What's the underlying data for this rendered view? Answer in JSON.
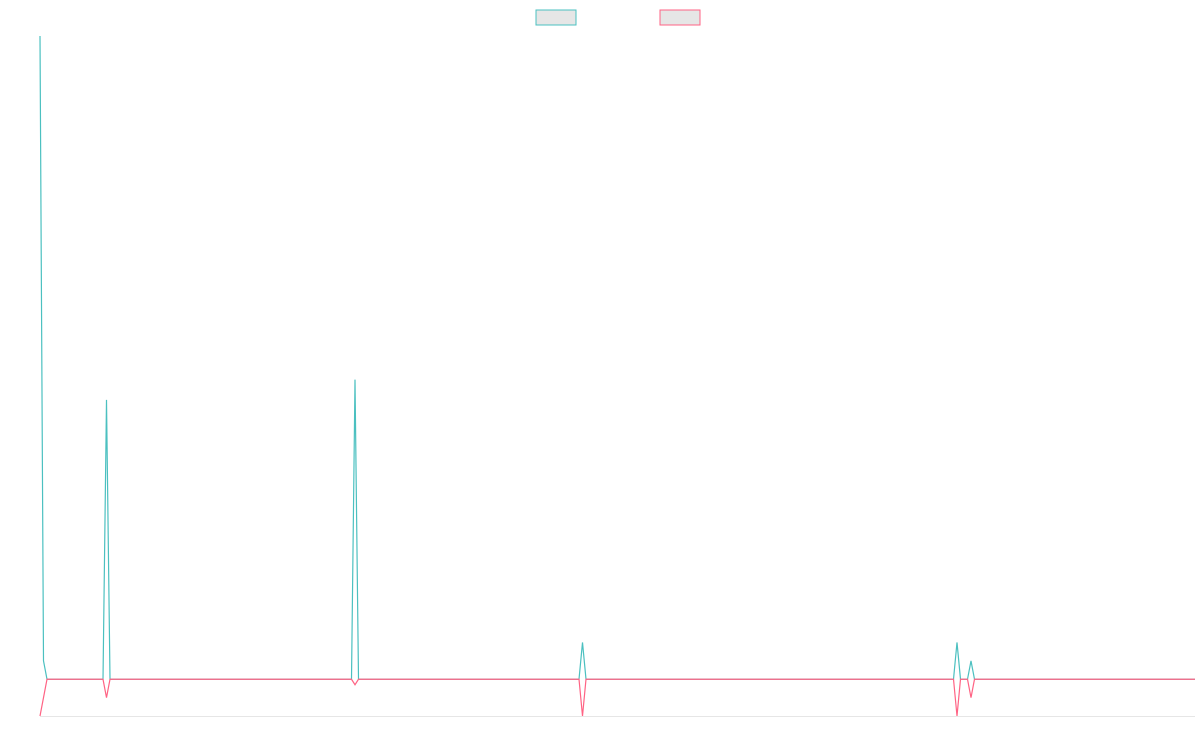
{
  "chart_data": {
    "type": "line",
    "x": [
      0,
      1,
      2,
      18,
      19,
      20,
      89,
      90,
      91,
      154,
      155,
      156,
      261,
      262,
      263,
      265,
      266,
      267,
      330
    ],
    "xlim": [
      0,
      330
    ],
    "ylim": [
      -2,
      35
    ],
    "grid": false,
    "legend": "top",
    "series": [
      {
        "color": "#4bc0c0",
        "values": [
          35,
          1,
          0,
          0,
          15.2,
          0,
          0,
          16.3,
          0,
          0,
          2,
          0,
          0,
          2,
          0,
          0,
          1,
          0,
          0
        ]
      },
      {
        "color": "#ff6384",
        "values": [
          -2,
          -1,
          0,
          0,
          -1,
          0,
          0,
          -0.3,
          0,
          0,
          -2,
          0,
          0,
          -2,
          0,
          0,
          -1,
          0,
          0
        ]
      }
    ]
  }
}
